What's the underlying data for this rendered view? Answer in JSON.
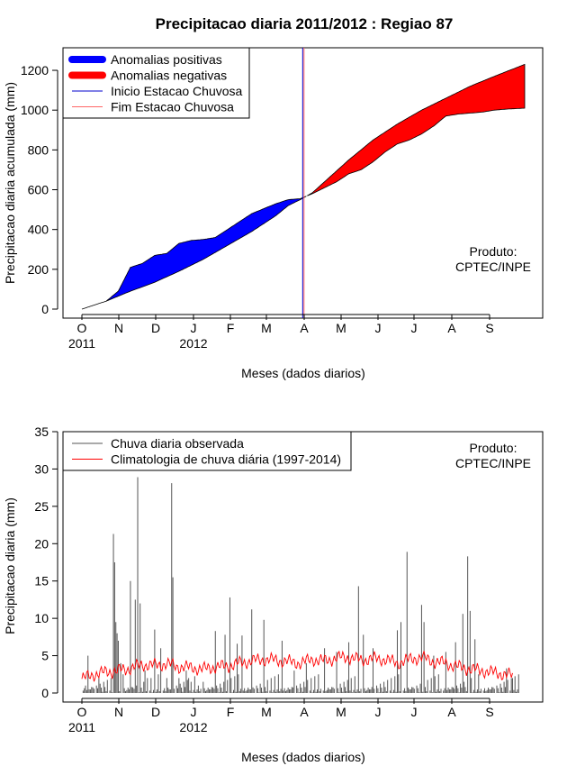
{
  "title": "Precipitacao diaria 2011/2012 : Regiao 87",
  "producer": [
    "Produto:",
    "CPTEC/INPE"
  ],
  "colors": {
    "positive": "#0000ff",
    "negative": "#ff0000",
    "observed": "#555555",
    "climatology": "#ff0000",
    "start_line": "#0000cc",
    "end_line": "#ff6666"
  },
  "chart_data": [
    {
      "type": "area",
      "xlabel": "Meses (dados diarios)",
      "ylabel": "Precipitacao diaria acumulada (mm)",
      "ylim": [
        0,
        1250
      ],
      "yticks": [
        0,
        200,
        400,
        600,
        800,
        1000,
        1200
      ],
      "xticks": [
        "O",
        "N",
        "D",
        "J",
        "F",
        "M",
        "A",
        "M",
        "J",
        "J",
        "A",
        "S"
      ],
      "year_labels": [
        "2011",
        "2012"
      ],
      "legend": [
        {
          "label": "Anomalias positivas",
          "kind": "thick",
          "color": "#0000ff"
        },
        {
          "label": "Anomalias negativas",
          "kind": "thick",
          "color": "#ff0000"
        },
        {
          "label": "Inicio Estacao Chuvosa",
          "kind": "thin",
          "color": "#0000cc"
        },
        {
          "label": "Fim Estacao Chuvosa",
          "kind": "thin",
          "color": "#ff6666"
        }
      ],
      "legend_position": "top-left",
      "season_start_day": 182,
      "season_end_day": 182,
      "observed_cumulative": {
        "day": [
          0,
          20,
          30,
          40,
          50,
          60,
          70,
          80,
          90,
          100,
          110,
          120,
          130,
          140,
          150,
          160,
          170,
          180,
          190,
          200,
          210,
          220,
          230,
          240,
          250,
          260,
          270,
          280,
          290,
          300,
          310,
          320,
          330,
          340,
          350,
          365
        ],
        "value": [
          0,
          40,
          90,
          210,
          230,
          270,
          280,
          330,
          345,
          350,
          360,
          400,
          440,
          480,
          505,
          530,
          550,
          555,
          580,
          610,
          640,
          680,
          700,
          740,
          790,
          830,
          850,
          880,
          920,
          970,
          980,
          985,
          990,
          1000,
          1005,
          1010
        ]
      },
      "climatology_cumulative": {
        "day": [
          0,
          20,
          40,
          60,
          80,
          100,
          120,
          140,
          160,
          170,
          180,
          190,
          200,
          220,
          240,
          260,
          280,
          300,
          320,
          340,
          365
        ],
        "value": [
          0,
          40,
          90,
          135,
          190,
          250,
          320,
          390,
          470,
          520,
          550,
          585,
          640,
          750,
          850,
          930,
          1000,
          1060,
          1120,
          1170,
          1230
        ]
      }
    },
    {
      "type": "bar+line",
      "xlabel": "Meses (dados diarios)",
      "ylabel": "Precipitacao diaria (mm)",
      "ylim": [
        0,
        35
      ],
      "yticks": [
        0,
        5,
        10,
        15,
        20,
        25,
        30,
        35
      ],
      "xticks": [
        "O",
        "N",
        "D",
        "J",
        "F",
        "M",
        "A",
        "M",
        "J",
        "J",
        "A",
        "S"
      ],
      "year_labels": [
        "2011",
        "2012"
      ],
      "legend": [
        {
          "label": "Chuva diaria observada",
          "kind": "thin",
          "color": "#555555"
        },
        {
          "label": "Climatologia de chuva diária (1997-2014)",
          "kind": "thin",
          "color": "#ff0000"
        }
      ],
      "legend_position": "top-left",
      "observed_peaks": {
        "day": [
          3,
          5,
          14,
          26,
          27,
          28,
          29,
          30,
          32,
          34,
          40,
          44,
          46,
          48,
          52,
          54,
          60,
          65,
          70,
          74,
          75,
          80,
          86,
          88,
          90,
          96,
          100,
          110,
          118,
          122,
          128,
          132,
          140,
          150,
          165,
          175,
          185,
          200,
          210,
          220,
          228,
          232,
          240,
          260,
          263,
          268,
          280,
          282,
          290,
          300,
          308,
          314,
          318,
          320,
          324,
          350,
          355
        ],
        "value": [
          1.0,
          5.0,
          2.0,
          21.3,
          17.5,
          9.5,
          8.0,
          7.0,
          4.0,
          2.5,
          15.0,
          12.5,
          28.9,
          12.0,
          3.0,
          2.0,
          8.5,
          6.0,
          2.0,
          28.1,
          15.5,
          2.0,
          3.0,
          2.0,
          1.5,
          1.0,
          1.5,
          8.3,
          7.8,
          12.8,
          6.6,
          7.7,
          11.2,
          9.8,
          7.0,
          3.0,
          4.0,
          6.0,
          5.5,
          6.8,
          14.3,
          7.8,
          6.0,
          8.4,
          9.5,
          18.9,
          11.8,
          9.5,
          5.0,
          5.5,
          6.8,
          10.6,
          18.3,
          11.0,
          7.2,
          3.3,
          2.0
        ]
      },
      "climatology_daily": {
        "day": [
          0,
          10,
          20,
          30,
          40,
          50,
          60,
          70,
          80,
          90,
          100,
          110,
          120,
          130,
          140,
          150,
          160,
          170,
          180,
          190,
          200,
          210,
          220,
          230,
          240,
          250,
          260,
          270,
          280,
          290,
          300,
          310,
          320,
          330,
          340,
          350,
          355
        ],
        "value": [
          1.9,
          2.5,
          2.8,
          3.0,
          3.3,
          3.8,
          3.7,
          3.9,
          3.5,
          3.4,
          3.2,
          3.5,
          3.6,
          4.0,
          4.3,
          4.5,
          4.4,
          4.2,
          4.0,
          4.5,
          4.3,
          4.7,
          4.8,
          4.4,
          4.6,
          4.5,
          4.0,
          4.5,
          4.8,
          4.2,
          4.0,
          3.5,
          3.2,
          3.0,
          2.7,
          2.5,
          2.3
        ]
      }
    }
  ]
}
